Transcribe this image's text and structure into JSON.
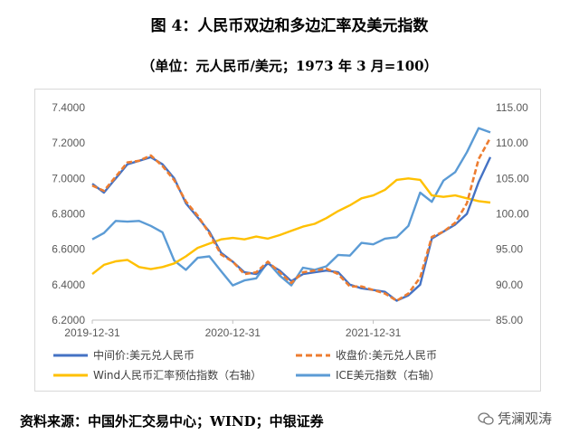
{
  "title": "图 4：人民币双边和多边汇率及美元指数",
  "subtitle": "（单位：元人民币/美元；1973 年 3 月=100）",
  "source": "资料来源：中国外汇交易中心；WIND；中银证券",
  "watermark": "凭澜观涛",
  "chart_data": {
    "type": "line",
    "y_left": {
      "ticks": [
        "6.2000",
        "6.4000",
        "6.6000",
        "6.8000",
        "7.0000",
        "7.2000",
        "7.4000"
      ],
      "ylim": [
        6.2,
        7.4
      ]
    },
    "y_right": {
      "ticks": [
        "85.00",
        "90.00",
        "95.00",
        "100.00",
        "105.00",
        "110.00",
        "115.00"
      ],
      "ylim": [
        85,
        115
      ]
    },
    "x_ticks": [
      "2019-12-31",
      "2020-12-31",
      "2021-12-31"
    ],
    "x": [
      "2019-12-31",
      "2020-01-31",
      "2020-02-29",
      "2020-03-31",
      "2020-04-30",
      "2020-05-31",
      "2020-06-30",
      "2020-07-31",
      "2020-08-31",
      "2020-09-30",
      "2020-10-31",
      "2020-11-30",
      "2020-12-31",
      "2021-01-31",
      "2021-02-28",
      "2021-03-31",
      "2021-04-30",
      "2021-05-31",
      "2021-06-30",
      "2021-07-31",
      "2021-08-31",
      "2021-09-30",
      "2021-10-31",
      "2021-11-30",
      "2021-12-31",
      "2022-01-31",
      "2022-02-28",
      "2022-03-31",
      "2022-04-30",
      "2022-05-31",
      "2022-06-30",
      "2022-07-31",
      "2022-08-31",
      "2022-09-30",
      "2022-10-31"
    ],
    "grid": false,
    "legend_position": "bottom",
    "series": [
      {
        "name": "中间价:美元兑人民币",
        "axis": "left",
        "color": "#4472c4",
        "style": "solid",
        "values": [
          6.97,
          6.92,
          7.0,
          7.08,
          7.1,
          7.12,
          7.08,
          7.0,
          6.86,
          6.78,
          6.7,
          6.58,
          6.53,
          6.47,
          6.46,
          6.52,
          6.48,
          6.42,
          6.46,
          6.47,
          6.48,
          6.47,
          6.4,
          6.38,
          6.37,
          6.36,
          6.31,
          6.34,
          6.4,
          6.66,
          6.7,
          6.74,
          6.8,
          6.98,
          7.12
        ]
      },
      {
        "name": "收盘价:美元兑人民币",
        "axis": "left",
        "color": "#ed7d31",
        "style": "dashed",
        "values": [
          6.96,
          6.93,
          7.01,
          7.09,
          7.1,
          7.13,
          7.07,
          6.99,
          6.87,
          6.79,
          6.69,
          6.57,
          6.53,
          6.46,
          6.47,
          6.53,
          6.47,
          6.41,
          6.47,
          6.48,
          6.49,
          6.46,
          6.39,
          6.39,
          6.37,
          6.35,
          6.31,
          6.35,
          6.44,
          6.67,
          6.7,
          6.75,
          6.86,
          7.11,
          7.23
        ]
      },
      {
        "name": "Wind人民币汇率预估指数（右轴）",
        "axis": "right",
        "color": "#ffc000",
        "style": "solid",
        "values": [
          91.5,
          92.8,
          93.3,
          93.5,
          92.5,
          92.2,
          92.5,
          93.0,
          94.0,
          95.2,
          95.8,
          96.4,
          96.6,
          96.4,
          96.8,
          96.5,
          97.0,
          97.6,
          98.2,
          98.6,
          99.4,
          100.4,
          101.2,
          102.2,
          102.6,
          103.4,
          104.8,
          105.0,
          104.8,
          102.6,
          102.4,
          102.6,
          102.2,
          101.8,
          101.6
        ]
      },
      {
        "name": "ICE美元指数（右轴）",
        "axis": "right",
        "color": "#5b9bd5",
        "style": "solid",
        "values": [
          96.4,
          97.3,
          99.0,
          98.9,
          99.0,
          98.3,
          97.4,
          93.4,
          92.1,
          93.8,
          94.0,
          91.9,
          89.9,
          90.6,
          90.9,
          93.2,
          91.3,
          89.9,
          92.4,
          92.1,
          92.6,
          94.2,
          94.1,
          95.9,
          95.7,
          96.5,
          96.7,
          98.3,
          103.0,
          101.7,
          104.7,
          105.9,
          108.7,
          112.1,
          111.5
        ]
      }
    ]
  },
  "colors": {
    "axis_text": "#595959",
    "frame": "#d9d9d9"
  }
}
